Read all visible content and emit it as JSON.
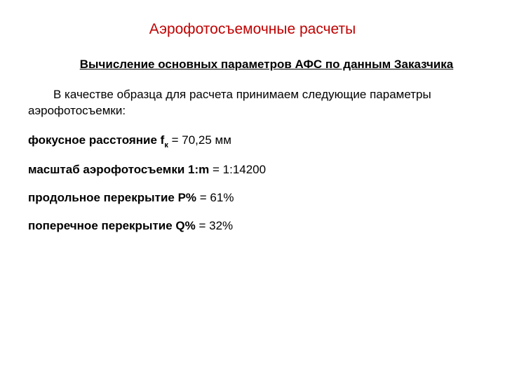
{
  "title": "Аэрофотосъемочные расчеты",
  "subtitle": "Вычисление основных параметров АФС по данным Заказчика",
  "intro": "В качестве образца для расчета принимаем следующие параметры аэрофотосъемки:",
  "params": {
    "focal": {
      "label_prefix": "фокусное расстояние f",
      "label_sub": "к",
      "value": " = 70,25 мм"
    },
    "scale": {
      "label": "масштаб аэрофотосъемки 1:m",
      "value": " = 1:14200"
    },
    "overlap_p": {
      "label": "продольное перекрытие Р%",
      "value": " = 61%"
    },
    "overlap_q": {
      "label": "поперечное перекрытие Q%",
      "value": " = 32%"
    }
  },
  "colors": {
    "title_color": "#c00000",
    "text_color": "#000000",
    "background": "#ffffff"
  },
  "typography": {
    "title_fontsize": 21,
    "subtitle_fontsize": 17,
    "body_fontsize": 17,
    "sub_fontsize": 11,
    "font_family": "Arial"
  }
}
